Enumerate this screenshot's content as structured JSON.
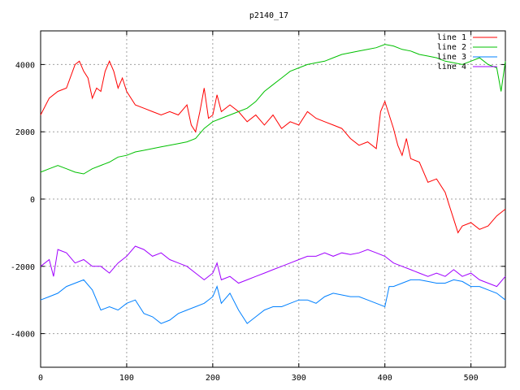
{
  "chart_data": {
    "type": "line",
    "title": "p2140_17",
    "xlabel": "",
    "ylabel": "",
    "xlim": [
      0,
      540
    ],
    "ylim": [
      -5000,
      5000
    ],
    "x_ticks": [
      0,
      100,
      200,
      300,
      400,
      500
    ],
    "y_ticks": [
      -4000,
      -2000,
      0,
      2000,
      4000
    ],
    "grid": true,
    "legend_position": "top-right",
    "series": [
      {
        "name": "line 1",
        "color": "#ff0000",
        "x": [
          0,
          10,
          20,
          30,
          40,
          45,
          50,
          55,
          60,
          65,
          70,
          75,
          80,
          85,
          90,
          95,
          100,
          110,
          120,
          130,
          140,
          150,
          160,
          170,
          175,
          180,
          185,
          190,
          195,
          200,
          205,
          210,
          220,
          230,
          240,
          250,
          260,
          270,
          280,
          290,
          300,
          310,
          320,
          330,
          340,
          350,
          360,
          370,
          380,
          390,
          395,
          400,
          405,
          410,
          415,
          420,
          425,
          430,
          440,
          450,
          460,
          470,
          475,
          480,
          485,
          490,
          500,
          510,
          520,
          530,
          540
        ],
        "y": [
          2500,
          3000,
          3200,
          3300,
          4000,
          4100,
          3800,
          3600,
          3000,
          3300,
          3200,
          3800,
          4100,
          3800,
          3300,
          3600,
          3200,
          2800,
          2700,
          2600,
          2500,
          2600,
          2500,
          2800,
          2200,
          2000,
          2600,
          3300,
          2400,
          2500,
          3100,
          2600,
          2800,
          2600,
          2300,
          2500,
          2200,
          2500,
          2100,
          2300,
          2200,
          2600,
          2400,
          2300,
          2200,
          2100,
          1800,
          1600,
          1700,
          1500,
          2600,
          2900,
          2500,
          2100,
          1600,
          1300,
          1800,
          1200,
          1100,
          500,
          600,
          200,
          -200,
          -600,
          -1000,
          -800,
          -700,
          -900,
          -800,
          -500,
          -300
        ]
      },
      {
        "name": "line 2",
        "color": "#00c000",
        "x": [
          0,
          10,
          20,
          30,
          40,
          50,
          60,
          70,
          80,
          90,
          100,
          110,
          120,
          130,
          140,
          150,
          160,
          170,
          180,
          190,
          200,
          210,
          220,
          230,
          240,
          250,
          260,
          270,
          280,
          290,
          300,
          310,
          320,
          330,
          340,
          350,
          360,
          370,
          380,
          390,
          400,
          410,
          420,
          430,
          440,
          450,
          460,
          470,
          480,
          490,
          500,
          510,
          520,
          530,
          535,
          540
        ],
        "y": [
          800,
          900,
          1000,
          900,
          800,
          750,
          900,
          1000,
          1100,
          1250,
          1300,
          1400,
          1450,
          1500,
          1550,
          1600,
          1650,
          1700,
          1800,
          2100,
          2300,
          2400,
          2500,
          2600,
          2700,
          2900,
          3200,
          3400,
          3600,
          3800,
          3900,
          4000,
          4050,
          4100,
          4200,
          4300,
          4350,
          4400,
          4450,
          4500,
          4600,
          4550,
          4450,
          4400,
          4300,
          4250,
          4200,
          4100,
          4050,
          4000,
          4100,
          4200,
          4000,
          3900,
          3200,
          4100
        ]
      },
      {
        "name": "line 3",
        "color": "#0080ff",
        "x": [
          0,
          10,
          20,
          30,
          40,
          50,
          60,
          70,
          80,
          90,
          100,
          110,
          120,
          130,
          140,
          150,
          160,
          170,
          180,
          190,
          200,
          205,
          210,
          220,
          230,
          240,
          250,
          260,
          270,
          280,
          290,
          300,
          310,
          320,
          330,
          340,
          350,
          360,
          370,
          380,
          390,
          400,
          405,
          410,
          420,
          430,
          440,
          450,
          460,
          470,
          480,
          490,
          500,
          510,
          520,
          530,
          540
        ],
        "y": [
          -3000,
          -2900,
          -2800,
          -2600,
          -2500,
          -2400,
          -2700,
          -3300,
          -3200,
          -3300,
          -3100,
          -3000,
          -3400,
          -3500,
          -3700,
          -3600,
          -3400,
          -3300,
          -3200,
          -3100,
          -2900,
          -2600,
          -3100,
          -2800,
          -3300,
          -3700,
          -3500,
          -3300,
          -3200,
          -3200,
          -3100,
          -3000,
          -3000,
          -3100,
          -2900,
          -2800,
          -2850,
          -2900,
          -2900,
          -3000,
          -3100,
          -3200,
          -2600,
          -2600,
          -2500,
          -2400,
          -2400,
          -2450,
          -2500,
          -2500,
          -2400,
          -2450,
          -2600,
          -2600,
          -2700,
          -2800,
          -3000
        ]
      },
      {
        "name": "line 4",
        "color": "#a000ff",
        "x": [
          0,
          10,
          15,
          20,
          30,
          40,
          50,
          60,
          70,
          80,
          90,
          100,
          110,
          120,
          130,
          140,
          150,
          160,
          170,
          180,
          190,
          200,
          205,
          210,
          220,
          230,
          240,
          250,
          260,
          270,
          280,
          290,
          300,
          310,
          320,
          330,
          340,
          350,
          360,
          370,
          380,
          390,
          400,
          410,
          420,
          430,
          440,
          450,
          460,
          470,
          480,
          490,
          500,
          510,
          520,
          530,
          540
        ],
        "y": [
          -2000,
          -1800,
          -2300,
          -1500,
          -1600,
          -1900,
          -1800,
          -2000,
          -2000,
          -2200,
          -1900,
          -1700,
          -1400,
          -1500,
          -1700,
          -1600,
          -1800,
          -1900,
          -2000,
          -2200,
          -2400,
          -2200,
          -1900,
          -2400,
          -2300,
          -2500,
          -2400,
          -2300,
          -2200,
          -2100,
          -2000,
          -1900,
          -1800,
          -1700,
          -1700,
          -1600,
          -1700,
          -1600,
          -1650,
          -1600,
          -1500,
          -1600,
          -1700,
          -1900,
          -2000,
          -2100,
          -2200,
          -2300,
          -2200,
          -2300,
          -2100,
          -2300,
          -2200,
          -2400,
          -2500,
          -2600,
          -2300
        ]
      }
    ]
  }
}
